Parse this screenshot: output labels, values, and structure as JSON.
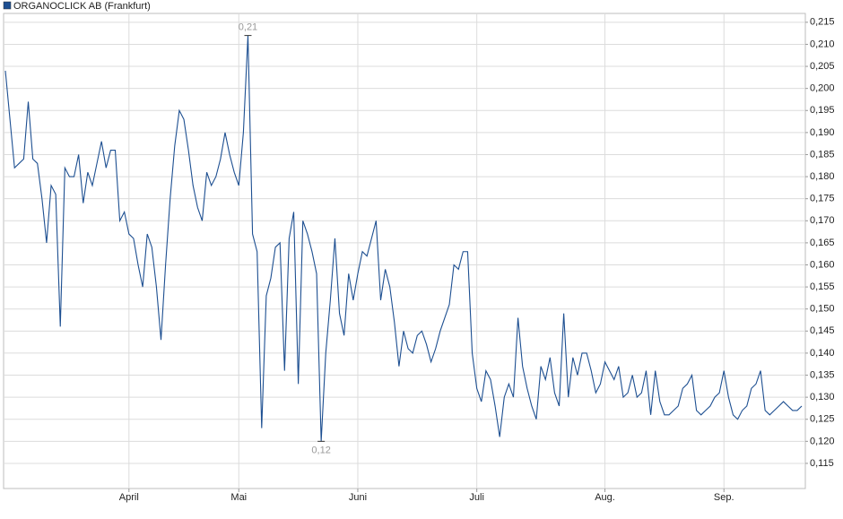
{
  "chart_data": {
    "type": "line",
    "categories": [
      null,
      null,
      null,
      null,
      null,
      null,
      null,
      null,
      null,
      null,
      null,
      null,
      null,
      null,
      null,
      null,
      null,
      null,
      null,
      null,
      null,
      null,
      null,
      null,
      null,
      null,
      null,
      "April",
      null,
      null,
      null,
      null,
      null,
      null,
      null,
      null,
      null,
      null,
      null,
      null,
      null,
      null,
      null,
      null,
      null,
      null,
      null,
      null,
      null,
      null,
      null,
      "Mai",
      null,
      null,
      null,
      null,
      null,
      null,
      null,
      null,
      null,
      null,
      null,
      null,
      null,
      null,
      null,
      null,
      null,
      null,
      null,
      null,
      null,
      null,
      null,
      null,
      null,
      "Juni",
      null,
      null,
      null,
      null,
      null,
      null,
      null,
      null,
      null,
      null,
      null,
      null,
      null,
      null,
      null,
      null,
      null,
      null,
      null,
      null,
      null,
      null,
      null,
      null,
      null,
      "Juli",
      null,
      null,
      null,
      null,
      null,
      null,
      null,
      null,
      null,
      null,
      null,
      null,
      null,
      null,
      null,
      null,
      null,
      null,
      null,
      null,
      null,
      null,
      null,
      null,
      null,
      null,
      null,
      "Aug.",
      null,
      null,
      null,
      null,
      null,
      null,
      null,
      null,
      null,
      null,
      null,
      null,
      null,
      null,
      null,
      null,
      null,
      null,
      null,
      null,
      null,
      null,
      null,
      null,
      null,
      "Sep.",
      null,
      null,
      null,
      null,
      null,
      null,
      null,
      null,
      null,
      null,
      null,
      null,
      null,
      null,
      null,
      null,
      null
    ],
    "series": [
      {
        "name": "ORGANOCLICK AB (Frankfurt)",
        "color": "#1d4f91",
        "values": [
          0.204,
          0.193,
          0.182,
          0.183,
          0.184,
          0.197,
          0.184,
          0.183,
          0.175,
          0.165,
          0.178,
          0.176,
          0.146,
          0.182,
          0.18,
          0.18,
          0.185,
          0.174,
          0.181,
          0.178,
          0.183,
          0.188,
          0.182,
          0.186,
          0.186,
          0.17,
          0.172,
          0.167,
          0.166,
          0.16,
          0.155,
          0.167,
          0.164,
          0.155,
          0.143,
          0.16,
          0.175,
          0.187,
          0.195,
          0.193,
          0.186,
          0.178,
          0.173,
          0.17,
          0.181,
          0.178,
          0.18,
          0.184,
          0.19,
          0.185,
          0.181,
          0.178,
          0.19,
          0.212,
          0.167,
          0.163,
          0.123,
          0.153,
          0.157,
          0.164,
          0.165,
          0.136,
          0.166,
          0.172,
          0.133,
          0.17,
          0.167,
          0.163,
          0.158,
          0.12,
          0.14,
          0.152,
          0.166,
          0.149,
          0.144,
          0.158,
          0.152,
          0.158,
          0.163,
          0.162,
          0.166,
          0.17,
          0.152,
          0.159,
          0.155,
          0.147,
          0.137,
          0.145,
          0.141,
          0.14,
          0.144,
          0.145,
          0.142,
          0.138,
          0.141,
          0.145,
          0.148,
          0.151,
          0.16,
          0.159,
          0.163,
          0.163,
          0.14,
          0.132,
          0.129,
          0.136,
          0.134,
          0.128,
          0.121,
          0.13,
          0.133,
          0.13,
          0.148,
          0.137,
          0.132,
          0.128,
          0.125,
          0.137,
          0.134,
          0.139,
          0.131,
          0.128,
          0.149,
          0.13,
          0.139,
          0.135,
          0.14,
          0.14,
          0.136,
          0.131,
          0.133,
          0.138,
          0.136,
          0.134,
          0.137,
          0.13,
          0.131,
          0.135,
          0.13,
          0.131,
          0.136,
          0.126,
          0.136,
          0.129,
          0.126,
          0.126,
          0.127,
          0.128,
          0.132,
          0.133,
          0.135,
          0.127,
          0.126,
          0.127,
          0.128,
          0.13,
          0.131,
          0.136,
          0.13,
          0.126,
          0.125,
          0.127,
          0.128,
          0.132,
          0.133,
          0.136,
          0.127,
          0.126,
          0.127,
          0.128,
          0.129,
          0.128,
          0.127,
          0.127,
          0.128
        ],
        "value_labels": [
          null,
          null,
          null,
          null,
          null,
          null,
          null,
          null,
          null,
          null,
          null,
          null,
          null,
          null,
          null,
          null,
          null,
          null,
          null,
          null,
          null,
          null,
          null,
          null,
          null,
          null,
          null,
          null,
          null,
          null,
          null,
          null,
          null,
          null,
          null,
          null,
          null,
          null,
          null,
          null,
          null,
          null,
          null,
          null,
          null,
          null,
          null,
          null,
          null,
          null,
          null,
          null,
          null,
          "0,21",
          null,
          null,
          null,
          null,
          null,
          null,
          null,
          null,
          null,
          null,
          null,
          null,
          null,
          null,
          null,
          "0,12",
          null,
          null,
          null,
          null,
          null,
          null,
          null,
          null,
          null,
          null,
          null,
          null,
          null,
          null,
          null,
          null,
          null,
          null,
          null,
          null,
          null,
          null,
          null,
          null,
          null,
          null,
          null,
          null,
          null,
          null,
          null,
          null,
          null,
          null,
          null,
          null,
          null,
          null,
          null,
          null,
          null,
          null,
          null,
          null,
          null,
          null,
          null,
          null,
          null,
          null,
          null,
          null,
          null,
          null,
          null,
          null,
          null,
          null,
          null,
          null,
          null,
          null,
          null,
          null,
          null,
          null,
          null,
          null,
          null,
          null,
          null,
          null,
          null,
          null,
          null,
          null,
          null,
          null,
          null,
          null,
          null,
          null,
          null,
          null,
          null,
          null,
          null,
          null,
          null,
          null,
          null,
          null,
          null,
          null,
          null,
          null,
          null,
          null,
          null,
          null,
          null,
          null,
          null,
          null,
          null
        ]
      }
    ],
    "ylim": [
      0.1093,
      0.217
    ],
    "yticks": [
      {
        "value": 0.115,
        "label": "0,115"
      },
      {
        "value": 0.12,
        "label": "0,120"
      },
      {
        "value": 0.125,
        "label": "0,125"
      },
      {
        "value": 0.13,
        "label": "0,130"
      },
      {
        "value": 0.135,
        "label": "0,135"
      },
      {
        "value": 0.14,
        "label": "0,140"
      },
      {
        "value": 0.145,
        "label": "0,145"
      },
      {
        "value": 0.15,
        "label": "0,150"
      },
      {
        "value": 0.155,
        "label": "0,155"
      },
      {
        "value": 0.16,
        "label": "0,160"
      },
      {
        "value": 0.165,
        "label": "0,165"
      },
      {
        "value": 0.17,
        "label": "0,170"
      },
      {
        "value": 0.175,
        "label": "0,175"
      },
      {
        "value": 0.18,
        "label": "0,180"
      },
      {
        "value": 0.185,
        "label": "0,185"
      },
      {
        "value": 0.19,
        "label": "0,190"
      },
      {
        "value": 0.195,
        "label": "0,195"
      },
      {
        "value": 0.2,
        "label": "0,200"
      },
      {
        "value": 0.205,
        "label": "0,205"
      },
      {
        "value": 0.21,
        "label": "0,210"
      },
      {
        "value": 0.215,
        "label": "0,215"
      }
    ],
    "grid": true
  }
}
